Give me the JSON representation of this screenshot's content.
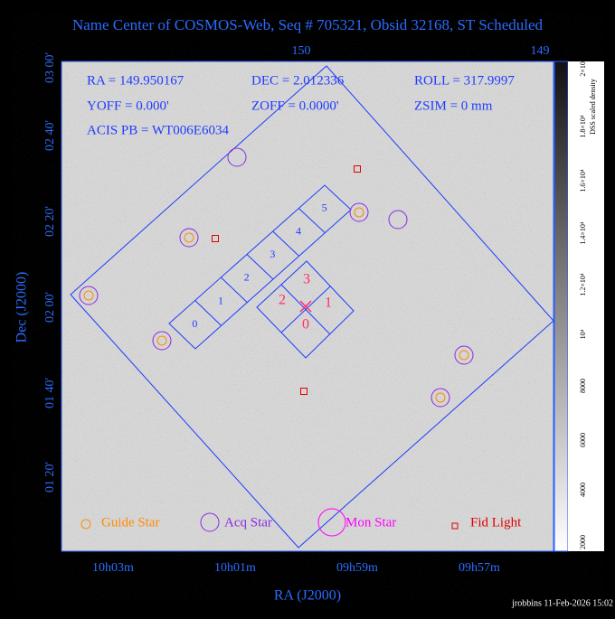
{
  "header": {
    "title": "Name Center of COSMOS-Web, Seq # 705321, Obsid 32168, ST Scheduled"
  },
  "info": [
    [
      "RA = 149.950167",
      "DEC = 2.012336",
      "ROLL = 317.9997"
    ],
    [
      "YOFF =    0.000'",
      "ZOFF =   0.0000'",
      "ZSIM = 0 mm"
    ],
    [
      "ACIS PB = WT006E6034"
    ]
  ],
  "axes": {
    "x_label": "RA (J2000)",
    "y_label": "Dec (J2000)",
    "top_ticks": [
      "150",
      "149"
    ],
    "bottom_ticks": [
      "10h03m",
      "10h01m",
      "09h59m",
      "09h57m"
    ],
    "left_ticks": [
      "03 00'",
      "02 40'",
      "02 20'",
      "02 00'",
      "01 40'",
      "01 20'"
    ]
  },
  "chips": {
    "s_array": [
      "0",
      "1",
      "2",
      "3",
      "4",
      "5"
    ],
    "i_array": [
      "3",
      "2",
      "1",
      "0"
    ]
  },
  "legend": [
    "Guide Star",
    "Acq Star",
    "Mon Star",
    "Fid Light"
  ],
  "colorbar": {
    "label": "DSS scaled density",
    "ticks": [
      "2000",
      "4000",
      "6000",
      "8000",
      "10⁴",
      "1.2×10⁴",
      "1.4×10⁴",
      "1.6×10⁴",
      "1.8×10⁴",
      "2×10⁴"
    ]
  },
  "footer": "jrobbins 11-Feb-2026 15:02"
}
